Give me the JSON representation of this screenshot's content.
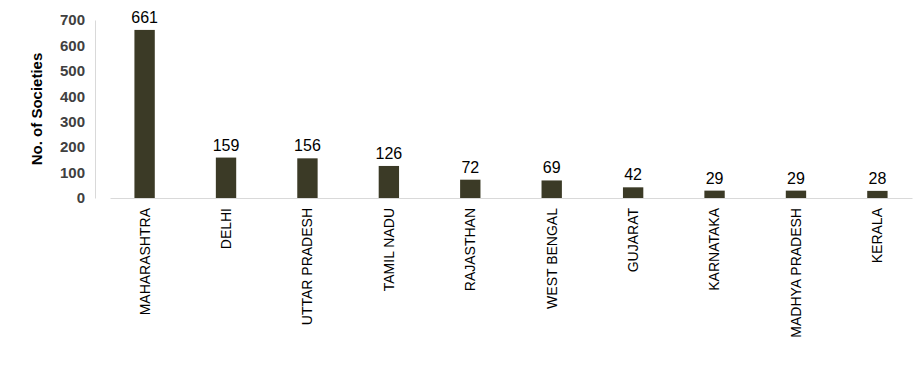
{
  "chart_data": {
    "type": "bar",
    "y_label": "No. of Societies",
    "categories": [
      "MAHARASHTRA",
      "DELHI",
      "UTTAR PRADESH",
      "TAMIL NADU",
      "RAJASTHAN",
      "WEST BENGAL",
      "GUJARAT",
      "KARNATAKA",
      "MADHYA PRADESH",
      "KERALA"
    ],
    "values": [
      661,
      159,
      156,
      126,
      72,
      69,
      42,
      29,
      29,
      28
    ],
    "color": "#3b3a26",
    "ylim": [
      0,
      700
    ],
    "yticks": [
      0,
      100,
      200,
      300,
      400,
      500,
      600,
      700
    ],
    "grid": false,
    "data_labels": true
  }
}
